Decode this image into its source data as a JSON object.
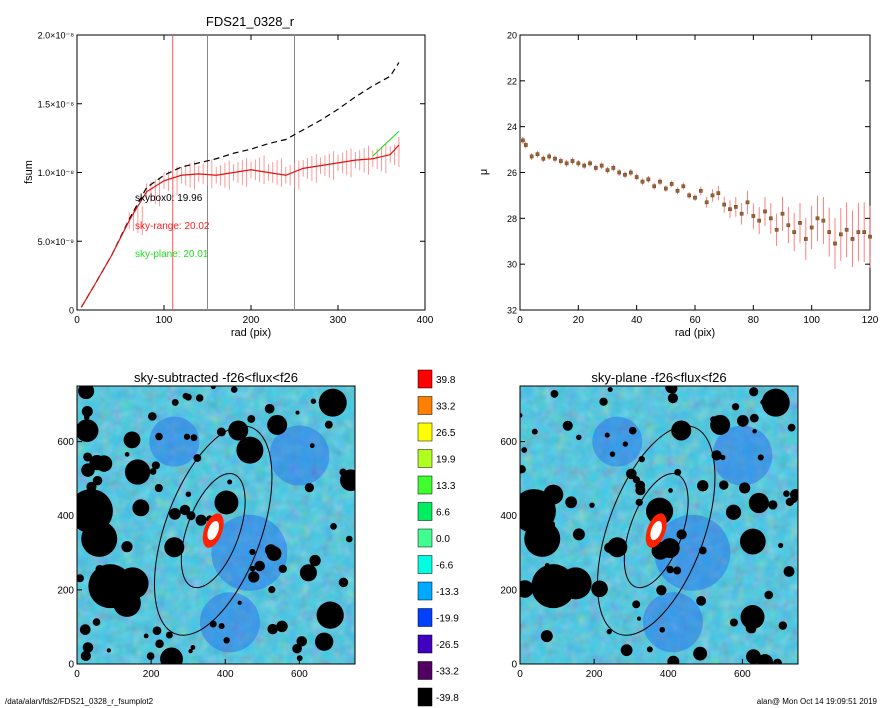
{
  "chart_data": [
    {
      "type": "line",
      "title": "FDS21_0328_r",
      "xlabel": "rad (pix)",
      "ylabel": "fsum",
      "xlim": [
        0,
        400
      ],
      "ylim": [
        0,
        2e-08
      ],
      "x_ticks": [
        "0",
        "100",
        "200",
        "300",
        "400"
      ],
      "y_ticks": [
        "0",
        "5.0×10⁻⁹",
        "1.0×10⁻⁸",
        "1.5×10⁻⁸",
        "2.0×10⁻⁸"
      ],
      "vertical_lines": [
        {
          "x": 110,
          "color": "#ff5555"
        },
        {
          "x": 150,
          "color": "#888888"
        },
        {
          "x": 250,
          "color": "#888888"
        }
      ],
      "annotations": [
        {
          "text": "skybox0: 19.96",
          "color": "#000000"
        },
        {
          "text": "sky-range: 20.02",
          "color": "#ff2020"
        },
        {
          "text": "sky-plane: 20.01",
          "color": "#22dd22"
        }
      ],
      "series": [
        {
          "style": "dashed",
          "color": "#000000",
          "x": [
            5,
            20,
            40,
            60,
            80,
            100,
            120,
            140,
            160,
            180,
            200,
            220,
            240,
            260,
            280,
            300,
            320,
            340,
            360,
            370
          ],
          "y": [
            2e-10,
            1.8e-09,
            4e-09,
            6.6e-09,
            8.9e-09,
            9.8e-09,
            1.04e-08,
            1.07e-08,
            1.1e-08,
            1.14e-08,
            1.17e-08,
            1.21e-08,
            1.24e-08,
            1.31e-08,
            1.38e-08,
            1.46e-08,
            1.55e-08,
            1.63e-08,
            1.7e-08,
            1.8e-08
          ]
        },
        {
          "style": "solid",
          "color": "#dd1111",
          "x": [
            5,
            20,
            40,
            60,
            80,
            100,
            120,
            140,
            160,
            180,
            200,
            220,
            240,
            260,
            280,
            300,
            320,
            340,
            360,
            370
          ],
          "y": [
            2e-10,
            1.8e-09,
            4e-09,
            6.5e-09,
            8.6e-09,
            9.4e-09,
            9.8e-09,
            9.9e-09,
            9.8e-09,
            1e-08,
            1.02e-08,
            1e-08,
            9.8e-09,
            1.03e-08,
            1.05e-08,
            1.07e-08,
            1.09e-08,
            1.1e-08,
            1.13e-08,
            1.2e-08
          ]
        },
        {
          "style": "solid",
          "color": "#22dd22",
          "x": [
            340,
            350,
            360,
            370
          ],
          "y": [
            1.12e-08,
            1.18e-08,
            1.24e-08,
            1.3e-08
          ]
        }
      ]
    },
    {
      "type": "scatter",
      "xlabel": "rad (pix)",
      "ylabel": "μ",
      "xlim": [
        0,
        120
      ],
      "ylim": [
        32,
        20
      ],
      "x_ticks": [
        "0",
        "20",
        "40",
        "60",
        "80",
        "100",
        "120"
      ],
      "y_ticks": [
        "20",
        "22",
        "24",
        "26",
        "28",
        "30",
        "32"
      ],
      "x": [
        1,
        2,
        4,
        6,
        8,
        10,
        12,
        14,
        16,
        18,
        20,
        22,
        24,
        26,
        28,
        30,
        32,
        34,
        36,
        38,
        40,
        42,
        44,
        46,
        48,
        50,
        52,
        54,
        56,
        58,
        60,
        62,
        64,
        66,
        68,
        70,
        72,
        74,
        76,
        78,
        80,
        82,
        84,
        86,
        88,
        90,
        92,
        94,
        96,
        98,
        100,
        102,
        104,
        106,
        108,
        110,
        112,
        114,
        116,
        118,
        120
      ],
      "y": [
        24.6,
        24.8,
        25.3,
        25.2,
        25.4,
        25.3,
        25.4,
        25.5,
        25.6,
        25.5,
        25.6,
        25.7,
        25.6,
        25.8,
        25.7,
        25.9,
        25.8,
        26.0,
        26.1,
        26.0,
        26.2,
        26.4,
        26.3,
        26.6,
        26.4,
        26.7,
        26.5,
        26.8,
        26.6,
        27.0,
        27.1,
        26.8,
        27.3,
        27.0,
        26.9,
        27.4,
        27.6,
        27.5,
        27.8,
        27.3,
        27.9,
        28.1,
        27.7,
        28.0,
        28.5,
        27.8,
        28.3,
        28.6,
        28.2,
        28.9,
        28.4,
        28.0,
        28.1,
        28.6,
        29.1,
        28.7,
        28.5,
        28.9,
        28.6,
        28.6,
        28.8
      ]
    },
    {
      "type": "heatmap",
      "title": "sky-subtracted -f26<flux<f26",
      "xlim": [
        0,
        750
      ],
      "ylim": [
        0,
        750
      ],
      "x_ticks": [
        "0",
        "200",
        "400",
        "600"
      ],
      "y_ticks": [
        "0",
        "200",
        "400",
        "600"
      ]
    },
    {
      "type": "heatmap",
      "title": "sky-plane -f26<flux<f26",
      "xlim": [
        0,
        750
      ],
      "ylim": [
        0,
        750
      ],
      "x_ticks": [
        "0",
        "200",
        "400",
        "600"
      ],
      "y_ticks": [
        "0",
        "200",
        "400",
        "600"
      ]
    }
  ],
  "colorbar": {
    "labels": [
      "39.8",
      "33.2",
      "26.5",
      "19.9",
      "13.3",
      "6.6",
      "0.0",
      "-6.6",
      "-13.3",
      "-19.9",
      "-26.5",
      "-33.2",
      "-39.8"
    ],
    "colors": [
      "#ff0000",
      "#ff8000",
      "#ffff00",
      "#b0ff20",
      "#40ff30",
      "#00ee60",
      "#40ff90",
      "#00ffe0",
      "#00a8ff",
      "#0040ff",
      "#4000c0",
      "#500060",
      "#000000"
    ]
  },
  "footer": {
    "left": "/data/alan/fds2/FDS21_0328_r_fsumplot2",
    "right": "alan@  Mon Oct 14 19:09:51 2019"
  }
}
